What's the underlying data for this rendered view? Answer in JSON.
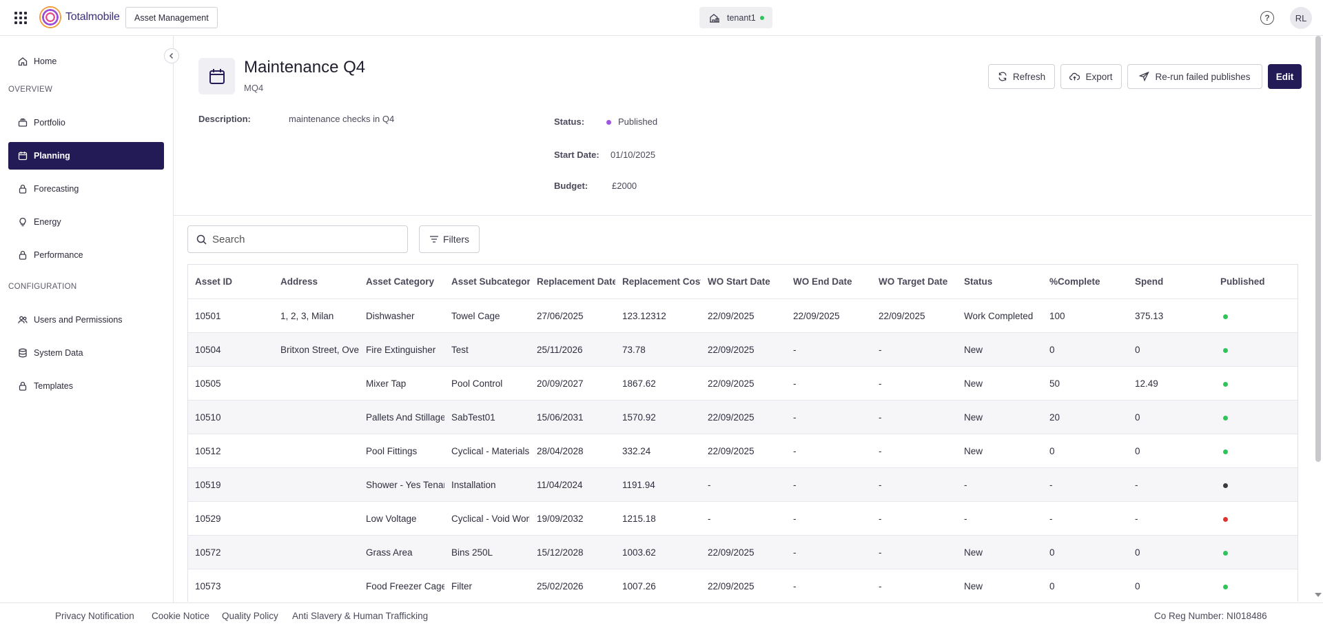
{
  "app": {
    "brand": "Totalmobile",
    "module": "Asset Management",
    "tenant": "tenant1",
    "user_initials": "RL",
    "help_icon": "?"
  },
  "colors": {
    "primary": "#231b56",
    "status_published": "#a156e0",
    "published_green": "#2ec45a",
    "published_dark": "#3a3a3a",
    "published_red": "#e0322e"
  },
  "sidebar": {
    "sections": [
      "OVERVIEW",
      "CONFIGURATION"
    ],
    "items": [
      {
        "label": "Home",
        "icon": "home-icon"
      },
      {
        "label": "Portfolio",
        "icon": "layers-icon"
      },
      {
        "label": "Planning",
        "icon": "calendar-icon",
        "active": true
      },
      {
        "label": "Forecasting",
        "icon": "lock-icon"
      },
      {
        "label": "Energy",
        "icon": "lightbulb-icon"
      },
      {
        "label": "Performance",
        "icon": "lock-icon"
      },
      {
        "label": "Users and Permissions",
        "icon": "users-icon"
      },
      {
        "label": "System Data",
        "icon": "database-icon"
      },
      {
        "label": "Templates",
        "icon": "lock-icon"
      }
    ]
  },
  "header": {
    "title": "Maintenance Q4",
    "code": "MQ4",
    "buttons": {
      "refresh": "Refresh",
      "export": "Export",
      "rerun": "Re-run failed publishes",
      "edit": "Edit"
    }
  },
  "details": {
    "description_label": "Description:",
    "description": "maintenance checks in Q4",
    "status_label": "Status:",
    "status": "Published",
    "start_date_label": "Start Date:",
    "start_date": "01/10/2025",
    "budget_label": "Budget:",
    "budget": "£2000"
  },
  "toolbar": {
    "search_placeholder": "Search",
    "filters": "Filters"
  },
  "table": {
    "columns": [
      "Asset ID",
      "Address",
      "Asset Category",
      "Asset Subcategory",
      "Replacement Date",
      "Replacement Cost",
      "WO Start Date",
      "WO End Date",
      "WO Target Date",
      "Status",
      "%Complete",
      "Spend",
      "Published"
    ],
    "rows": [
      {
        "cells": [
          "10501",
          "1, 2, 3, Milan",
          "Dishwasher",
          "Towel Cage",
          "27/06/2025",
          "123.12312",
          "22/09/2025",
          "22/09/2025",
          "22/09/2025",
          "Work Completed",
          "100",
          "375.13"
        ],
        "published": "green"
      },
      {
        "cells": [
          "10504",
          "Britxon Street, Over",
          "Fire Extinguisher",
          "Test",
          "25/11/2026",
          "73.78",
          "22/09/2025",
          "-",
          "-",
          "New",
          "0",
          "0"
        ],
        "published": "green"
      },
      {
        "cells": [
          "10505",
          "",
          "Mixer Tap",
          "Pool Control",
          "20/09/2027",
          "1867.62",
          "22/09/2025",
          "-",
          "-",
          "New",
          "50",
          "12.49"
        ],
        "published": "green"
      },
      {
        "cells": [
          "10510",
          "",
          "Pallets And Stillages",
          "SabTest01",
          "15/06/2031",
          "1570.92",
          "22/09/2025",
          "-",
          "-",
          "New",
          "20",
          "0"
        ],
        "published": "green"
      },
      {
        "cells": [
          "10512",
          "",
          "Pool Fittings",
          "Cyclical - Materials",
          "28/04/2028",
          "332.24",
          "22/09/2025",
          "-",
          "-",
          "New",
          "0",
          "0"
        ],
        "published": "green"
      },
      {
        "cells": [
          "10519",
          "",
          "Shower - Yes Tenant",
          "Installation",
          "11/04/2024",
          "1191.94",
          "-",
          "-",
          "-",
          "-",
          "-",
          "-"
        ],
        "published": "dark"
      },
      {
        "cells": [
          "10529",
          "",
          "Low Voltage",
          "Cyclical - Void Works",
          "19/09/2032",
          "1215.18",
          "-",
          "-",
          "-",
          "-",
          "-",
          "-"
        ],
        "published": "red"
      },
      {
        "cells": [
          "10572",
          "",
          "Grass Area",
          "Bins 250L",
          "15/12/2028",
          "1003.62",
          "22/09/2025",
          "-",
          "-",
          "New",
          "0",
          "0"
        ],
        "published": "green"
      },
      {
        "cells": [
          "10573",
          "",
          "Food Freezer Cage",
          "Filter",
          "25/02/2026",
          "1007.26",
          "22/09/2025",
          "-",
          "-",
          "New",
          "0",
          "0"
        ],
        "published": "green"
      }
    ]
  },
  "footer": {
    "links": [
      "Privacy Notification",
      "Cookie Notice",
      "Quality Policy",
      "Anti Slavery & Human Trafficking"
    ],
    "reg": "Co Reg Number: NI018486"
  }
}
